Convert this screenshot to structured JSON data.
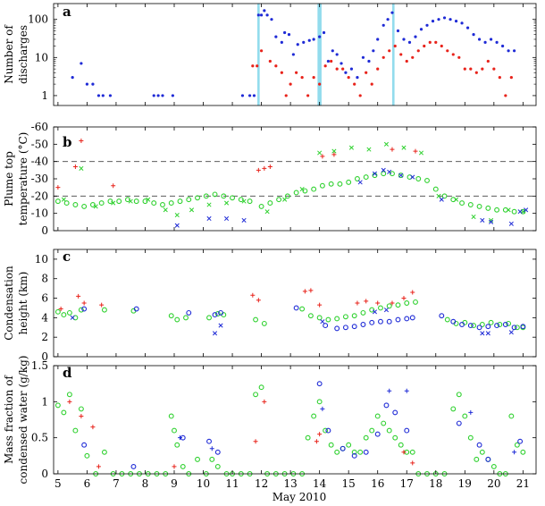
{
  "figure": {
    "xlabel": "May 2010",
    "x_ticks": [
      5,
      6,
      7,
      8,
      9,
      10,
      11,
      12,
      13,
      14,
      15,
      16,
      17,
      18,
      19,
      20,
      21
    ],
    "xlim": [
      4.85,
      21.45
    ]
  },
  "colors": {
    "red": "#e8231b",
    "blue": "#1f2bd6",
    "green": "#2fd12f",
    "band": "#7fd6ea"
  },
  "chart_data": [
    {
      "panel": "a",
      "type": "scatter",
      "ylabel_lines": [
        "Number of",
        "discharges"
      ],
      "yscale": "log",
      "ylim": [
        0.55,
        260
      ],
      "y_ticks": [
        1,
        10,
        100
      ],
      "highlight_bands": [
        [
          11.86,
          11.94
        ],
        [
          13.93,
          14.07
        ],
        [
          16.5,
          16.58
        ]
      ],
      "series": [
        {
          "name": "",
          "color": "blue",
          "marker": "dot",
          "x": [
            5.5,
            5.8,
            6.0,
            6.2,
            6.4,
            6.55,
            6.8,
            8.3,
            8.45,
            8.6,
            8.95,
            11.35,
            11.6,
            11.75,
            11.9,
            12.0,
            12.1,
            12.2,
            12.35,
            12.5,
            12.7,
            12.8,
            12.95,
            13.1,
            13.25,
            13.45,
            13.65,
            13.8,
            14.0,
            14.15,
            14.3,
            14.45,
            14.6,
            14.75,
            14.9,
            15.1,
            15.3,
            15.5,
            15.7,
            15.85,
            16.0,
            16.2,
            16.35,
            16.5,
            16.7,
            16.9,
            17.1,
            17.3,
            17.5,
            17.7,
            17.9,
            18.1,
            18.3,
            18.5,
            18.7,
            18.9,
            19.1,
            19.3,
            19.5,
            19.7,
            19.9,
            20.1,
            20.3,
            20.5,
            20.7
          ],
          "y": [
            3,
            7,
            2,
            2,
            1,
            1,
            1,
            1,
            1,
            1,
            1,
            1,
            1,
            1,
            130,
            130,
            170,
            130,
            100,
            35,
            25,
            45,
            40,
            12,
            22,
            25,
            28,
            30,
            35,
            45,
            8,
            15,
            12,
            7,
            4,
            5,
            3,
            10,
            8,
            15,
            30,
            70,
            100,
            150,
            50,
            30,
            25,
            35,
            55,
            70,
            90,
            100,
            110,
            100,
            90,
            80,
            60,
            40,
            30,
            25,
            30,
            25,
            20,
            15,
            15
          ]
        },
        {
          "name": "",
          "color": "red",
          "marker": "dot",
          "x": [
            11.7,
            11.85,
            12.0,
            12.3,
            12.5,
            12.7,
            12.85,
            13.0,
            13.2,
            13.4,
            13.6,
            13.8,
            14.0,
            14.2,
            14.4,
            14.6,
            14.8,
            15.0,
            15.2,
            15.4,
            15.6,
            15.8,
            16.0,
            16.2,
            16.4,
            16.6,
            16.8,
            17.0,
            17.2,
            17.4,
            17.6,
            17.8,
            18.0,
            18.2,
            18.4,
            18.6,
            18.8,
            19.0,
            19.2,
            19.4,
            19.6,
            19.8,
            20.0,
            20.2,
            20.4,
            20.6
          ],
          "y": [
            6,
            6,
            15,
            8,
            6,
            4,
            1,
            2,
            4,
            3,
            1,
            3,
            2,
            6,
            8,
            5,
            5,
            3,
            2,
            1,
            4,
            2,
            5,
            10,
            15,
            20,
            12,
            8,
            10,
            15,
            20,
            25,
            25,
            20,
            15,
            12,
            10,
            5,
            5,
            4,
            5,
            8,
            5,
            3,
            1,
            3
          ]
        }
      ]
    },
    {
      "panel": "b",
      "type": "scatter",
      "ylabel_lines": [
        "Plume top",
        "temperature (°C)"
      ],
      "y_inverted": true,
      "ylim": [
        0,
        -60
      ],
      "y_ticks": [
        0,
        -10,
        -20,
        -30,
        -40,
        -50,
        -60
      ],
      "reference_lines": [
        -20,
        -40
      ],
      "series": [
        {
          "name": "",
          "color": "green",
          "marker": "o",
          "x": [
            5.0,
            5.3,
            5.6,
            5.9,
            6.2,
            6.5,
            6.8,
            7.1,
            7.4,
            7.7,
            8.0,
            8.3,
            8.6,
            8.9,
            9.2,
            9.5,
            9.8,
            10.1,
            10.4,
            10.7,
            11.0,
            11.3,
            11.6,
            12.0,
            12.3,
            12.6,
            12.9,
            13.2,
            13.5,
            13.8,
            14.1,
            14.4,
            14.7,
            15.0,
            15.3,
            15.6,
            15.9,
            16.2,
            16.5,
            16.8,
            17.1,
            17.4,
            17.7,
            18.0,
            18.3,
            18.6,
            18.9,
            19.2,
            19.5,
            19.8,
            20.1,
            20.4,
            20.7,
            21.0
          ],
          "y": [
            -17,
            -16,
            -15,
            -14,
            -15,
            -16,
            -17,
            -17,
            -18,
            -17,
            -17,
            -16,
            -15,
            -16,
            -17,
            -18,
            -19,
            -20,
            -21,
            -20,
            -19,
            -18,
            -17,
            -14,
            -16,
            -18,
            -20,
            -22,
            -23,
            -24,
            -26,
            -27,
            -27,
            -28,
            -30,
            -31,
            -32,
            -33,
            -33,
            -32,
            -31,
            -30,
            -29,
            -24,
            -20,
            -18,
            -16,
            -15,
            -14,
            -13,
            -12,
            -12,
            -11,
            -11
          ]
        },
        {
          "name": "",
          "color": "green",
          "marker": "x",
          "x": [
            5.2,
            5.8,
            6.3,
            6.9,
            7.5,
            8.1,
            8.7,
            9.1,
            9.6,
            10.2,
            10.8,
            11.4,
            12.2,
            12.8,
            13.4,
            14.0,
            14.5,
            15.1,
            15.7,
            16.3,
            16.9,
            17.5,
            18.1,
            18.7,
            19.3,
            19.9,
            20.5,
            21.0
          ],
          "y": [
            -18,
            -36,
            -14,
            -16,
            -17,
            -18,
            -12,
            -9,
            -12,
            -15,
            -16,
            -17,
            -11,
            -18,
            -24,
            -45,
            -46,
            -48,
            -47,
            -50,
            -48,
            -45,
            -20,
            -18,
            -8,
            -6,
            -12,
            -11
          ]
        },
        {
          "name": "",
          "color": "blue",
          "marker": "x",
          "x": [
            9.1,
            10.2,
            10.8,
            11.4,
            15.4,
            15.9,
            16.2,
            16.4,
            16.8,
            17.2,
            18.2,
            19.6,
            19.9,
            20.6,
            20.9,
            21.1
          ],
          "y": [
            -3,
            -7,
            -7,
            -6,
            -28,
            -33,
            -35,
            -34,
            -32,
            -31,
            -18,
            -6,
            -5,
            -4,
            -11,
            -12
          ]
        },
        {
          "name": "",
          "color": "red",
          "marker": "plus",
          "x": [
            5.0,
            5.6,
            5.8,
            6.9,
            11.9,
            12.1,
            12.3,
            14.1,
            14.5,
            16.5,
            17.3
          ],
          "y": [
            -25,
            -37,
            -52,
            -26,
            -35,
            -36,
            -37,
            -43,
            -44,
            -47,
            -46
          ]
        }
      ]
    },
    {
      "panel": "c",
      "type": "scatter",
      "ylabel_lines": [
        "Condensation",
        "height (km)"
      ],
      "ylim": [
        0,
        11
      ],
      "y_ticks": [
        0,
        2,
        4,
        6,
        8,
        10
      ],
      "series": [
        {
          "name": "",
          "color": "green",
          "marker": "o",
          "x": [
            5.0,
            5.2,
            5.4,
            5.6,
            5.8,
            6.6,
            7.6,
            8.9,
            9.1,
            9.4,
            10.2,
            10.5,
            10.7,
            11.8,
            12.1,
            13.4,
            13.7,
            14.0,
            14.3,
            14.6,
            14.9,
            15.2,
            15.5,
            15.8,
            16.1,
            16.4,
            16.7,
            17.0,
            17.3,
            18.4,
            18.7,
            19.0,
            19.3,
            19.6,
            19.9,
            20.2,
            20.5,
            20.8,
            21.0
          ],
          "y": [
            4.6,
            4.3,
            4.5,
            4.0,
            4.8,
            4.8,
            4.7,
            4.2,
            3.8,
            4.0,
            4.0,
            4.4,
            4.3,
            3.8,
            3.4,
            4.9,
            4.2,
            4.0,
            3.8,
            3.9,
            4.1,
            4.2,
            4.5,
            4.8,
            5.0,
            5.2,
            5.3,
            5.5,
            5.6,
            3.8,
            3.4,
            3.5,
            3.2,
            3.3,
            3.5,
            3.3,
            3.4,
            3.0,
            3.0
          ]
        },
        {
          "name": "",
          "color": "blue",
          "marker": "o",
          "x": [
            5.9,
            7.7,
            9.5,
            10.4,
            10.6,
            13.2,
            14.2,
            14.6,
            14.9,
            15.2,
            15.5,
            15.8,
            16.1,
            16.4,
            16.7,
            17.0,
            17.2,
            18.2,
            18.6,
            18.9,
            19.2,
            19.5,
            19.8,
            20.1,
            20.4,
            20.7,
            21.0
          ],
          "y": [
            4.9,
            4.9,
            4.5,
            4.3,
            4.5,
            5.0,
            3.2,
            2.9,
            3.0,
            3.1,
            3.3,
            3.5,
            3.6,
            3.6,
            3.8,
            3.9,
            4.0,
            4.2,
            3.6,
            3.3,
            3.2,
            3.0,
            3.1,
            3.2,
            3.3,
            3.0,
            3.1
          ]
        },
        {
          "name": "",
          "color": "blue",
          "marker": "x",
          "x": [
            5.5,
            10.4,
            10.6,
            14.1,
            15.9,
            16.3,
            19.6,
            19.8,
            20.6
          ],
          "y": [
            4.0,
            2.4,
            3.2,
            3.6,
            4.6,
            4.8,
            2.4,
            2.4,
            2.5
          ]
        },
        {
          "name": "",
          "color": "red",
          "marker": "plus",
          "x": [
            5.1,
            5.7,
            5.9,
            6.5,
            11.7,
            11.9,
            13.5,
            13.7,
            14.0,
            15.3,
            15.6,
            16.0,
            16.5,
            16.9,
            17.2
          ],
          "y": [
            4.9,
            6.2,
            5.5,
            5.3,
            6.3,
            5.8,
            6.7,
            6.8,
            5.3,
            5.5,
            5.7,
            5.5,
            5.5,
            6.0,
            6.6
          ]
        }
      ]
    },
    {
      "panel": "d",
      "type": "scatter",
      "ylabel_lines": [
        "Mass fraction of",
        "condensed water  (g/kg)"
      ],
      "ylim": [
        0,
        1.5
      ],
      "y_ticks": [
        0,
        0.5,
        1,
        1.5
      ],
      "series": [
        {
          "name": "",
          "color": "green",
          "marker": "o",
          "x": [
            5.0,
            5.2,
            5.4,
            5.6,
            5.8,
            6.0,
            6.3,
            6.6,
            6.9,
            7.2,
            7.5,
            7.8,
            8.1,
            8.4,
            8.7,
            8.9,
            9.0,
            9.1,
            9.3,
            9.5,
            9.8,
            10.1,
            10.3,
            10.5,
            10.8,
            11.0,
            11.3,
            11.6,
            11.8,
            12.0,
            12.2,
            12.5,
            12.8,
            13.1,
            13.4,
            13.6,
            13.8,
            14.0,
            14.2,
            14.4,
            14.6,
            14.8,
            15.0,
            15.2,
            15.4,
            15.6,
            15.8,
            16.0,
            16.2,
            16.4,
            16.6,
            16.8,
            17.0,
            17.2,
            17.4,
            17.7,
            18.0,
            18.3,
            18.6,
            18.8,
            19.0,
            19.2,
            19.4,
            19.6,
            19.8,
            20.0,
            20.2,
            20.4,
            20.6,
            20.8,
            21.0
          ],
          "y": [
            0.95,
            0.85,
            1.1,
            0.6,
            0.9,
            0.25,
            0,
            0.3,
            0,
            0,
            0,
            0,
            0,
            0,
            0,
            0.8,
            0.6,
            0.4,
            0.1,
            0,
            0.2,
            0,
            0.2,
            0.1,
            0,
            0,
            0,
            0,
            1.1,
            1.2,
            0,
            0,
            0,
            0,
            0,
            0.5,
            0.8,
            1.0,
            0.6,
            0.4,
            0.3,
            0.35,
            0.4,
            0.3,
            0.3,
            0.5,
            0.6,
            0.8,
            0.7,
            0.6,
            0.5,
            0.4,
            0.3,
            0.3,
            0,
            0,
            0,
            0,
            0.9,
            1.1,
            0.8,
            0.5,
            0.2,
            0.3,
            0.2,
            0.1,
            0,
            0,
            0.8,
            0.4,
            0.3
          ]
        },
        {
          "name": "",
          "color": "blue",
          "marker": "o",
          "x": [
            5.9,
            7.6,
            9.3,
            10.2,
            10.5,
            14.0,
            14.3,
            14.8,
            15.2,
            15.6,
            16.0,
            16.3,
            16.6,
            17.0,
            18.8,
            19.5,
            19.8,
            20.9
          ],
          "y": [
            0.4,
            0.1,
            0.5,
            0.45,
            0.3,
            1.25,
            0.6,
            0.35,
            0.25,
            0.3,
            0.55,
            0.95,
            0.85,
            0.6,
            0.7,
            0.4,
            0.2,
            0.45
          ]
        },
        {
          "name": "",
          "color": "blue",
          "marker": "plus",
          "x": [
            9.2,
            10.3,
            14.1,
            16.4,
            17.0,
            19.2,
            20.7
          ],
          "y": [
            0.5,
            0.35,
            0.9,
            1.15,
            1.15,
            0.85,
            0.3
          ]
        },
        {
          "name": "",
          "color": "red",
          "marker": "plus",
          "x": [
            5.4,
            5.8,
            6.2,
            6.4,
            9.0,
            11.8,
            12.1,
            13.9,
            14.0,
            16.9,
            17.2
          ],
          "y": [
            1.0,
            0.8,
            0.65,
            0.1,
            0.1,
            0.45,
            1.0,
            0.45,
            0.55,
            0.3,
            0.15
          ]
        }
      ]
    }
  ]
}
